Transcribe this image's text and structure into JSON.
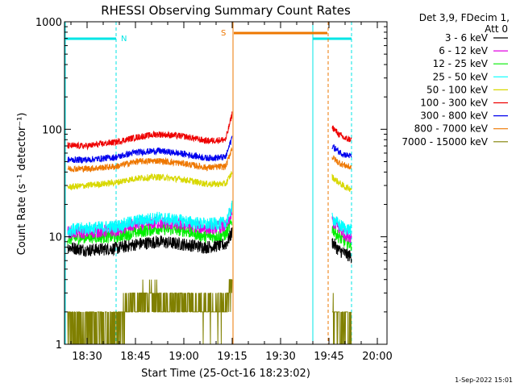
{
  "chart_data": {
    "type": "line",
    "title": "RHESSI Observing Summary Count Rates",
    "xlabel": "Start Time (25-Oct-16 18:23:02)",
    "ylabel": "Count Rate (s⁻¹ detector⁻¹)",
    "yscale": "log",
    "ylim": [
      1,
      1000
    ],
    "xlim": [
      "18:23",
      "20:03"
    ],
    "x_ticks": [
      "18:30",
      "18:45",
      "19:00",
      "19:15",
      "19:30",
      "19:45",
      "20:00"
    ],
    "y_ticks": [
      "1",
      "10",
      "100",
      "1000"
    ],
    "legend_header": [
      "Det 3,9, FDecim 1,",
      "Att 0"
    ],
    "legend_position": "outside-right",
    "grid": false,
    "timestamp": "1-Sep-2022 15:01",
    "data_gaps": [
      [
        "19:15",
        "19:40"
      ]
    ],
    "flags": [
      {
        "label": "N",
        "color": "#00e5e5",
        "start": "18:23",
        "end": "18:39",
        "end2": "19:40",
        "end3": "19:52"
      },
      {
        "label": "S",
        "color": "#ee7700",
        "start": "19:15",
        "end": "19:45"
      }
    ],
    "series": [
      {
        "name": "3 - 6 keV",
        "color": "#000000",
        "x": [
          "18:24",
          "18:30",
          "18:39",
          "18:45",
          "18:52",
          "19:00",
          "19:07",
          "19:13",
          "19:15",
          "19:46",
          "19:48",
          "19:50",
          "19:52"
        ],
        "values": [
          8,
          7.5,
          7.8,
          8.5,
          9,
          8.5,
          8,
          8.5,
          11,
          9,
          7.5,
          7,
          6.5
        ]
      },
      {
        "name": "6 - 12 keV",
        "color": "#e000e0",
        "x": [
          "18:24",
          "18:30",
          "18:39",
          "18:45",
          "18:52",
          "19:00",
          "19:07",
          "19:13",
          "19:15",
          "19:46",
          "19:48",
          "19:50",
          "19:52"
        ],
        "values": [
          11,
          11,
          11.5,
          13,
          13.5,
          13,
          12,
          12.5,
          17,
          14,
          12,
          10.5,
          10
        ]
      },
      {
        "name": "12 - 25 keV",
        "color": "#00ee00",
        "x": [
          "18:24",
          "18:30",
          "18:39",
          "18:45",
          "18:52",
          "19:00",
          "19:07",
          "19:13",
          "19:15",
          "19:46",
          "19:48",
          "19:50",
          "19:52"
        ],
        "values": [
          9.5,
          10,
          10,
          11,
          12,
          11.5,
          10,
          10.5,
          14,
          12,
          10,
          9,
          8.5
        ]
      },
      {
        "name": "25 - 50 keV",
        "color": "#00ffff",
        "x": [
          "18:24",
          "18:30",
          "18:39",
          "18:45",
          "18:52",
          "19:00",
          "19:07",
          "19:13",
          "19:15",
          "19:46",
          "19:48",
          "19:50",
          "19:52"
        ],
        "values": [
          11.5,
          12,
          12.5,
          14,
          15,
          14,
          13,
          13.5,
          19,
          15,
          13,
          12,
          11.5
        ]
      },
      {
        "name": "50 - 100 keV",
        "color": "#d8d800",
        "x": [
          "18:24",
          "18:30",
          "18:39",
          "18:45",
          "18:52",
          "19:00",
          "19:07",
          "19:13",
          "19:15",
          "19:46",
          "19:48",
          "19:50",
          "19:52"
        ],
        "values": [
          29,
          30,
          32,
          35,
          36,
          34,
          31,
          31,
          40,
          36,
          32,
          29,
          28
        ]
      },
      {
        "name": "100 - 300 keV",
        "color": "#ee0000",
        "x": [
          "18:24",
          "18:30",
          "18:39",
          "18:45",
          "18:52",
          "19:00",
          "19:07",
          "19:13",
          "19:15",
          "19:46",
          "19:48",
          "19:50",
          "19:52"
        ],
        "values": [
          70,
          70,
          76,
          84,
          90,
          86,
          78,
          80,
          140,
          105,
          90,
          82,
          80
        ]
      },
      {
        "name": "300 - 800 keV",
        "color": "#0000ee",
        "x": [
          "18:24",
          "18:30",
          "18:39",
          "18:45",
          "18:52",
          "19:00",
          "19:07",
          "19:13",
          "19:15",
          "19:46",
          "19:48",
          "19:50",
          "19:52"
        ],
        "values": [
          52,
          52,
          55,
          61,
          63,
          59,
          54,
          55,
          85,
          70,
          62,
          58,
          56
        ]
      },
      {
        "name": "800 - 7000 keV",
        "color": "#ee7700",
        "x": [
          "18:24",
          "18:30",
          "18:39",
          "18:45",
          "18:52",
          "19:00",
          "19:07",
          "19:13",
          "19:15",
          "19:46",
          "19:48",
          "19:50",
          "19:52"
        ],
        "values": [
          43,
          43,
          45,
          50,
          51,
          48,
          44,
          45,
          68,
          55,
          49,
          46,
          44
        ]
      },
      {
        "name": "7000 - 15000 keV",
        "color": "#808000",
        "x": [
          "18:24",
          "18:30",
          "18:39",
          "18:45",
          "18:52",
          "19:00",
          "19:07",
          "19:13",
          "19:15",
          "19:46",
          "19:48",
          "19:50",
          "19:52"
        ],
        "values": [
          1.5,
          1.5,
          1.5,
          2.5,
          2.5,
          2.5,
          2,
          2,
          4,
          2,
          1.5,
          1.5,
          1.5
        ]
      }
    ]
  }
}
